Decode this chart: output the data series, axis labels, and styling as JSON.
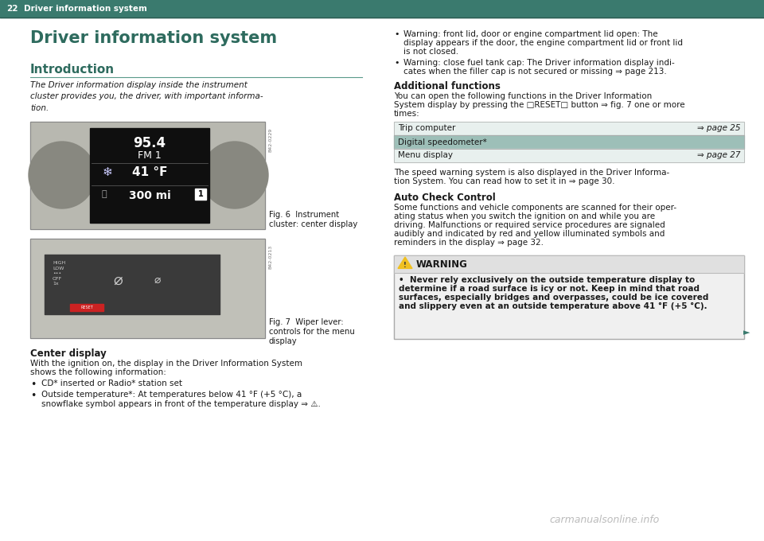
{
  "page_number": "22",
  "header_text": "Driver information system",
  "header_bg": "#3a7a6e",
  "page_bg": "#ffffff",
  "main_title": "Driver information system",
  "main_title_color": "#2e6b5e",
  "section1_title": "Introduction",
  "section1_title_color": "#2e6b5e",
  "section1_line_color": "#5a9a8a",
  "intro_text": "The Driver information display inside the instrument\ncluster provides you, the driver, with important informa-\ntion.",
  "fig6_caption_line1": "Fig. 6  Instrument",
  "fig6_caption_line2": "cluster: center display",
  "fig7_caption_line1": "Fig. 7  Wiper lever:",
  "fig7_caption_line2": "controls for the menu",
  "fig7_caption_line3": "display",
  "center_display_title": "Center display",
  "center_display_text1": "With the ignition on, the display in the Driver Information System",
  "center_display_text2": "shows the following information:",
  "bullet1": "CD* inserted or Radio* station set",
  "bullet2a": "Outside temperature*: At temperatures below 41 °F (+5 °C), a",
  "bullet2b": "snowflake symbol appears in front of the temperature display ⇒ ⚠.",
  "rb1_line1": "Warning: front lid, door or engine compartment lid open: The",
  "rb1_line2": "display appears if the door, the engine compartment lid or front lid",
  "rb1_line3": "is not closed.",
  "rb2_line1": "Warning: close fuel tank cap: The Driver information display indi-",
  "rb2_line2": "cates when the filler cap is not secured or missing ⇒ page 213.",
  "additional_title": "Additional functions",
  "additional_text1": "You can open the following functions in the Driver Information",
  "additional_text2": "System display by pressing the □RESET□ button ⇒ fig. 7 one or more",
  "additional_text3": "times:",
  "table_row1_label": "Trip computer",
  "table_row1_page": "⇒ page 25",
  "table_row1_shaded": false,
  "table_row2_label": "Digital speedometer*",
  "table_row2_page": "",
  "table_row2_shaded": true,
  "table_row3_label": "Menu display",
  "table_row3_page": "⇒ page 27",
  "table_row3_shaded": false,
  "table_shade_color": "#9dbfb8",
  "table_alt_color": "#e8f0ee",
  "speed_text1": "The speed warning system is also displayed in the Driver Informa-",
  "speed_text2": "tion System. You can read how to set it in ⇒ page 30.",
  "auto_check_title": "Auto Check Control",
  "auto_text1": "Some functions and vehicle components are scanned for their oper-",
  "auto_text2": "ating status when you switch the ignition on and while you are",
  "auto_text3": "driving. Malfunctions or required service procedures are signaled",
  "auto_text4": "audibly and indicated by red and yellow illuminated symbols and",
  "auto_text5": "reminders in the display ⇒ page 32.",
  "warning_title": "WARNING",
  "warn_text1": "•  Never rely exclusively on the outside temperature display to",
  "warn_text2": "determine if a road surface is icy or not. Keep in mind that road",
  "warn_text3": "surfaces, especially bridges and overpasses, could be ice covered",
  "warn_text4": "and slippery even at an outside temperature above 41 °F (+5 °C).",
  "watermark": "carmanualsonline.info",
  "text_color": "#1a1a1a",
  "small_text_color": "#333333"
}
